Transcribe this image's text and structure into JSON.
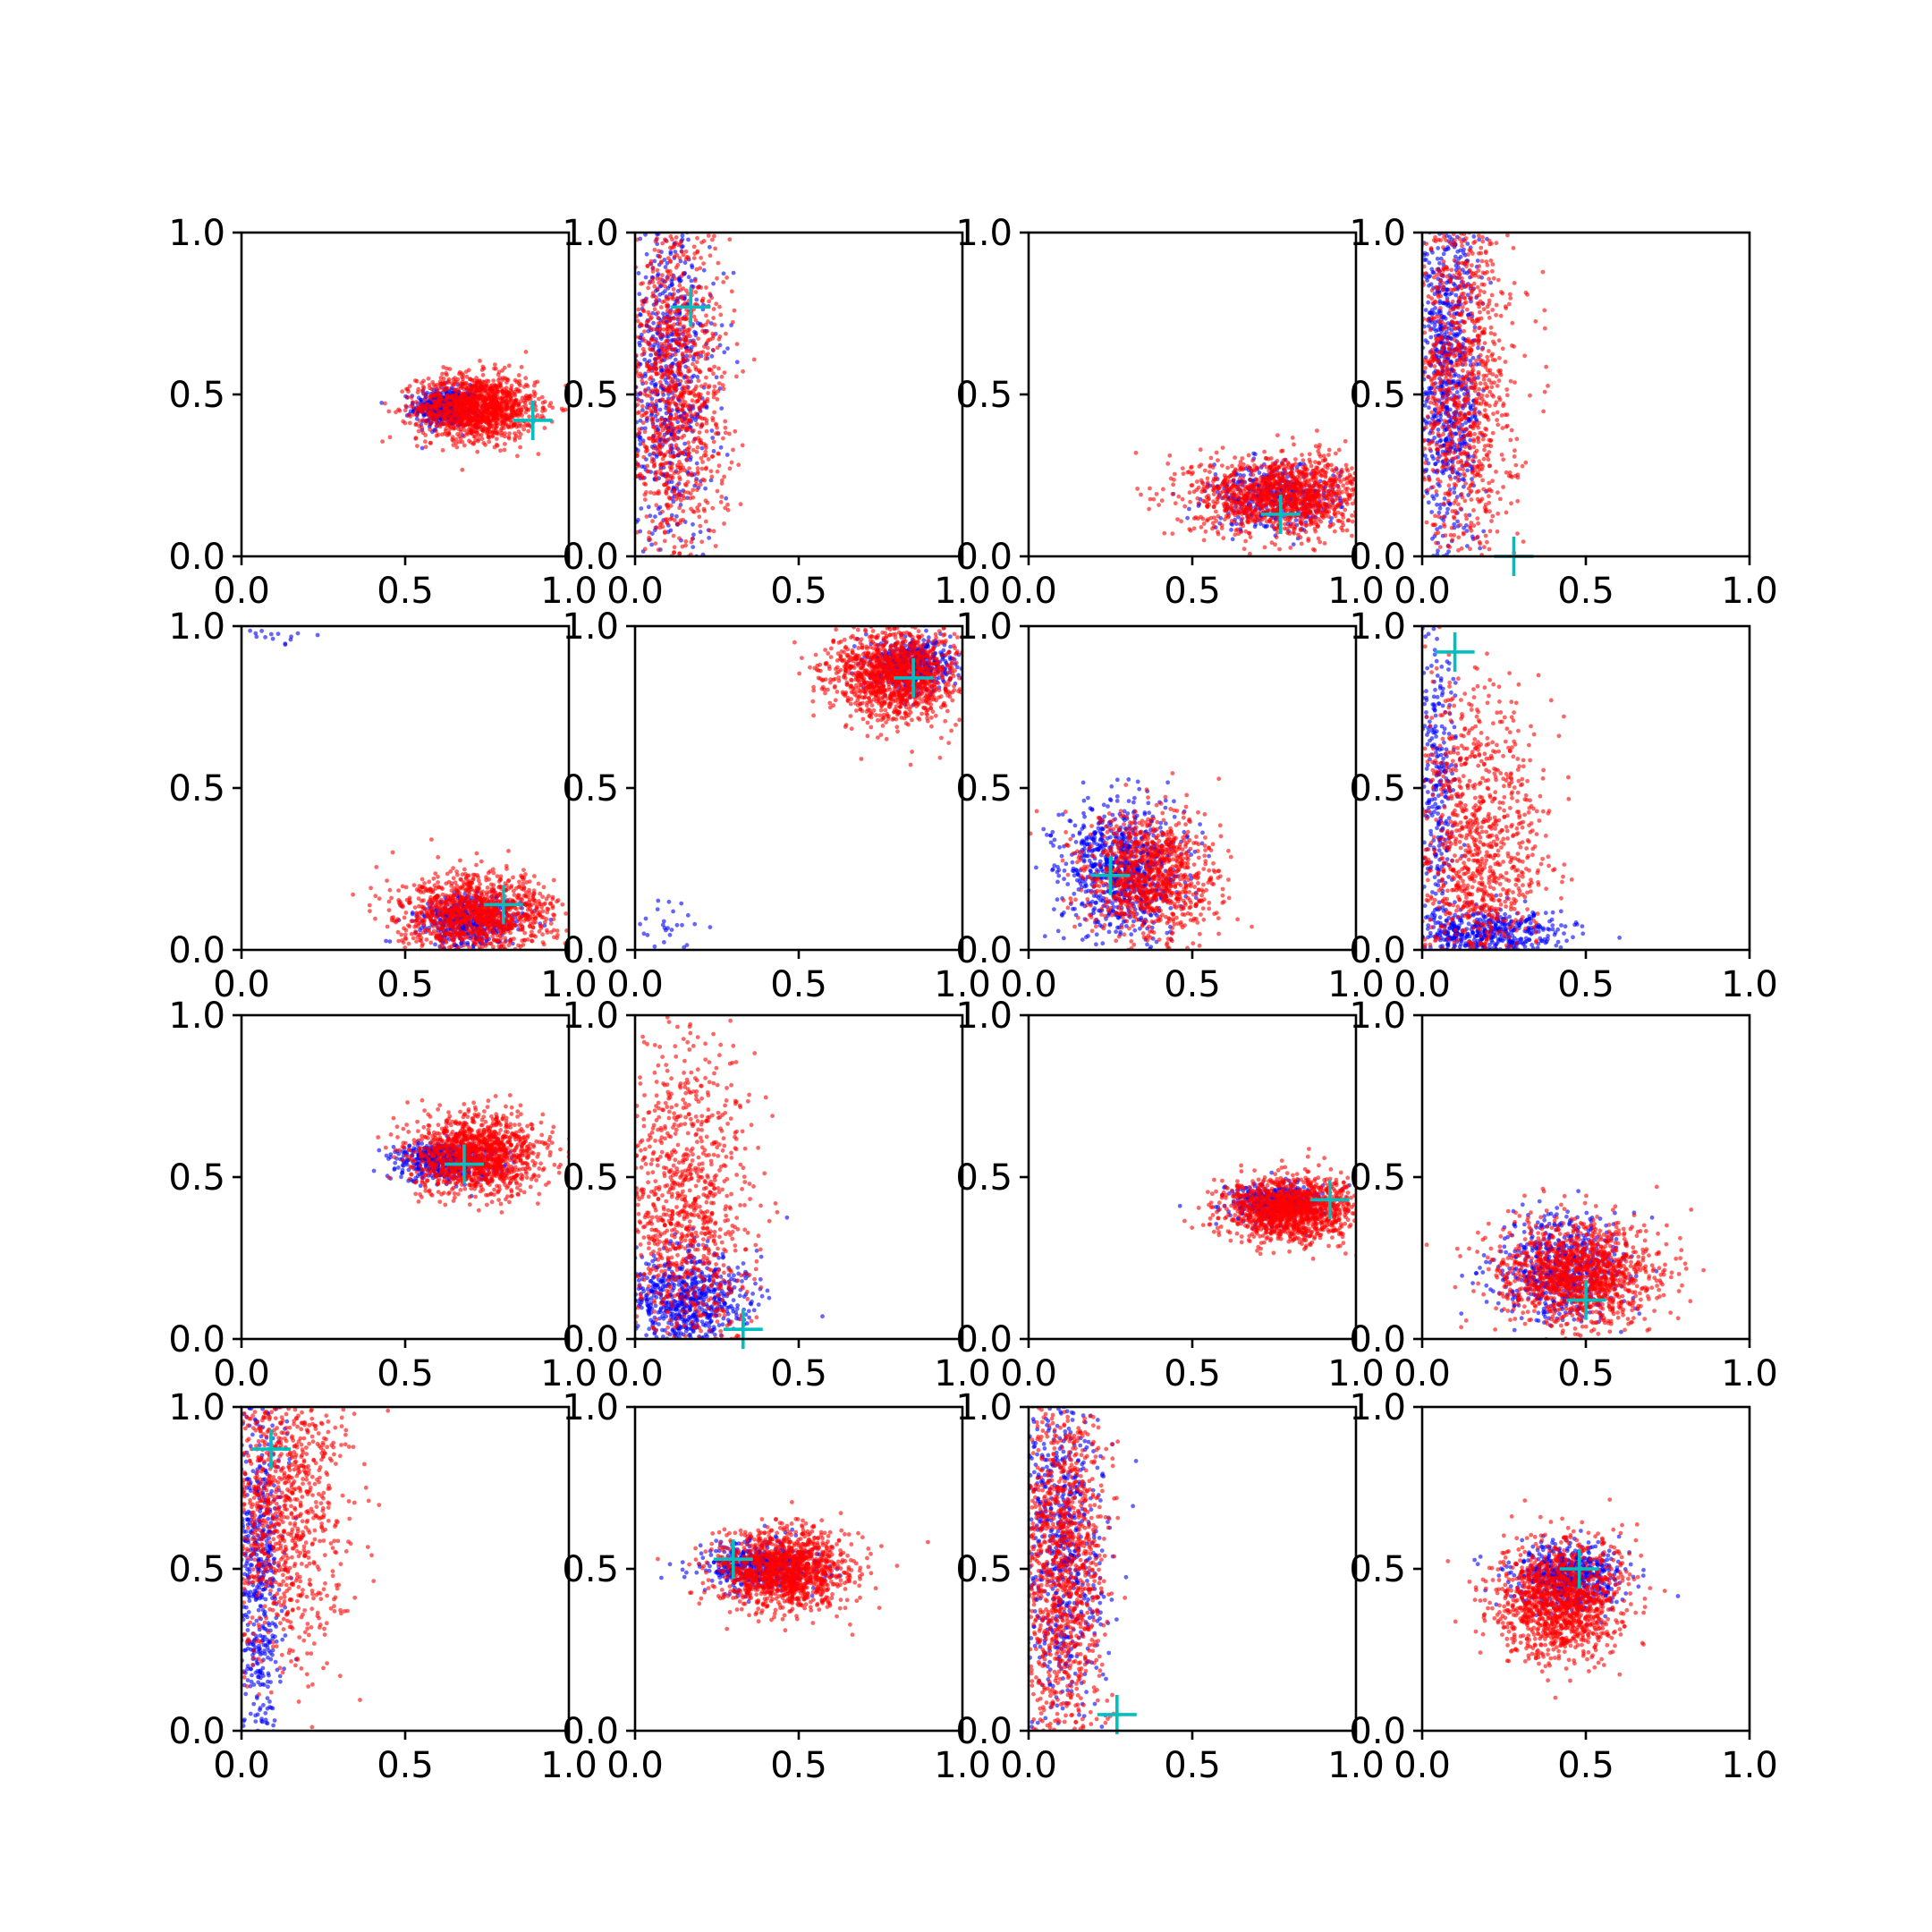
{
  "chart_data": {
    "type": "scatter",
    "layout": "4x4 grid of subplots",
    "xlim": [
      0,
      1
    ],
    "ylim": [
      0,
      1
    ],
    "xticks": [
      0.0,
      0.5,
      1.0
    ],
    "yticks": [
      0.0,
      0.5,
      1.0
    ],
    "tick_labels": [
      "0.0",
      "0.5",
      "1.0"
    ],
    "grid": false,
    "legend": "none",
    "colors": {
      "series_a": "#0000ff",
      "series_b": "#ff0000",
      "marker": "#00bfbf"
    },
    "subplots": [
      {
        "blue": [
          {
            "cx": 0.63,
            "cy": 0.46,
            "sx": 0.05,
            "sy": 0.03,
            "n": 500
          }
        ],
        "red": [
          {
            "cx": 0.72,
            "cy": 0.46,
            "sx": 0.09,
            "sy": 0.05,
            "n": 1300
          }
        ],
        "marker": [
          0.89,
          0.42
        ]
      },
      {
        "blue": [
          {
            "cx": 0.1,
            "cy": 0.55,
            "sx": 0.07,
            "sy": 0.28,
            "n": 700
          }
        ],
        "red": [
          {
            "cx": 0.12,
            "cy": 0.5,
            "sx": 0.08,
            "sy": 0.3,
            "n": 1200
          }
        ],
        "marker": [
          0.17,
          0.77
        ]
      },
      {
        "blue": [
          {
            "cx": 0.75,
            "cy": 0.18,
            "sx": 0.1,
            "sy": 0.05,
            "n": 400
          }
        ],
        "red": [
          {
            "cx": 0.78,
            "cy": 0.19,
            "sx": 0.14,
            "sy": 0.06,
            "n": 1300
          }
        ],
        "marker": [
          0.77,
          0.13
        ]
      },
      {
        "blue": [
          {
            "cx": 0.08,
            "cy": 0.55,
            "sx": 0.05,
            "sy": 0.28,
            "n": 800
          }
        ],
        "red": [
          {
            "cx": 0.12,
            "cy": 0.55,
            "sx": 0.08,
            "sy": 0.3,
            "n": 1100
          }
        ],
        "marker": [
          0.28,
          0.0
        ]
      },
      {
        "blue": [
          {
            "cx": 0.7,
            "cy": 0.09,
            "sx": 0.08,
            "sy": 0.04,
            "n": 500
          },
          {
            "cx": 0.1,
            "cy": 0.97,
            "sx": 0.06,
            "sy": 0.02,
            "n": 15
          }
        ],
        "red": [
          {
            "cx": 0.72,
            "cy": 0.11,
            "sx": 0.12,
            "sy": 0.06,
            "n": 1200
          }
        ],
        "marker": [
          0.8,
          0.14
        ]
      },
      {
        "blue": [
          {
            "cx": 0.85,
            "cy": 0.88,
            "sx": 0.06,
            "sy": 0.04,
            "n": 500
          },
          {
            "cx": 0.1,
            "cy": 0.07,
            "sx": 0.05,
            "sy": 0.05,
            "n": 25
          }
        ],
        "red": [
          {
            "cx": 0.8,
            "cy": 0.85,
            "sx": 0.1,
            "sy": 0.07,
            "n": 1300
          }
        ],
        "marker": [
          0.85,
          0.84
        ]
      },
      {
        "blue": [
          {
            "cx": 0.28,
            "cy": 0.25,
            "sx": 0.09,
            "sy": 0.1,
            "n": 800
          }
        ],
        "red": [
          {
            "cx": 0.37,
            "cy": 0.22,
            "sx": 0.1,
            "sy": 0.1,
            "n": 1000
          }
        ],
        "marker": [
          0.25,
          0.23
        ]
      },
      {
        "blue": [
          {
            "cx": 0.2,
            "cy": 0.05,
            "sx": 0.12,
            "sy": 0.04,
            "n": 500
          },
          {
            "cx": 0.05,
            "cy": 0.5,
            "sx": 0.03,
            "sy": 0.25,
            "n": 300
          }
        ],
        "red": [
          {
            "cx": 0.17,
            "cy": 0.3,
            "sx": 0.1,
            "sy": 0.25,
            "n": 1100
          }
        ],
        "marker": [
          0.1,
          0.92
        ]
      },
      {
        "blue": [
          {
            "cx": 0.62,
            "cy": 0.55,
            "sx": 0.08,
            "sy": 0.03,
            "n": 500
          }
        ],
        "red": [
          {
            "cx": 0.72,
            "cy": 0.57,
            "sx": 0.1,
            "sy": 0.06,
            "n": 1300
          }
        ],
        "marker": [
          0.68,
          0.54
        ]
      },
      {
        "blue": [
          {
            "cx": 0.15,
            "cy": 0.12,
            "sx": 0.1,
            "sy": 0.08,
            "n": 700
          }
        ],
        "red": [
          {
            "cx": 0.15,
            "cy": 0.35,
            "sx": 0.1,
            "sy": 0.28,
            "n": 1100
          }
        ],
        "marker": [
          0.33,
          0.03
        ]
      },
      {
        "blue": [
          {
            "cx": 0.75,
            "cy": 0.42,
            "sx": 0.07,
            "sy": 0.03,
            "n": 400
          }
        ],
        "red": [
          {
            "cx": 0.8,
            "cy": 0.4,
            "sx": 0.1,
            "sy": 0.05,
            "n": 1300
          }
        ],
        "marker": [
          0.92,
          0.43
        ]
      },
      {
        "blue": [
          {
            "cx": 0.42,
            "cy": 0.22,
            "sx": 0.1,
            "sy": 0.08,
            "n": 600
          }
        ],
        "red": [
          {
            "cx": 0.48,
            "cy": 0.2,
            "sx": 0.12,
            "sy": 0.08,
            "n": 1300
          }
        ],
        "marker": [
          0.5,
          0.12
        ]
      },
      {
        "blue": [
          {
            "cx": 0.05,
            "cy": 0.5,
            "sx": 0.04,
            "sy": 0.3,
            "n": 600
          }
        ],
        "red": [
          {
            "cx": 0.12,
            "cy": 0.7,
            "sx": 0.1,
            "sy": 0.25,
            "n": 1100
          }
        ],
        "marker": [
          0.09,
          0.87
        ]
      },
      {
        "blue": [
          {
            "cx": 0.38,
            "cy": 0.51,
            "sx": 0.08,
            "sy": 0.04,
            "n": 500
          }
        ],
        "red": [
          {
            "cx": 0.46,
            "cy": 0.49,
            "sx": 0.1,
            "sy": 0.06,
            "n": 1300
          }
        ],
        "marker": [
          0.3,
          0.53
        ]
      },
      {
        "blue": [
          {
            "cx": 0.1,
            "cy": 0.55,
            "sx": 0.07,
            "sy": 0.28,
            "n": 700
          }
        ],
        "red": [
          {
            "cx": 0.1,
            "cy": 0.5,
            "sx": 0.07,
            "sy": 0.3,
            "n": 1200
          }
        ],
        "marker": [
          0.27,
          0.05
        ]
      },
      {
        "blue": [
          {
            "cx": 0.45,
            "cy": 0.48,
            "sx": 0.08,
            "sy": 0.05,
            "n": 600
          }
        ],
        "red": [
          {
            "cx": 0.42,
            "cy": 0.4,
            "sx": 0.1,
            "sy": 0.09,
            "n": 1300
          }
        ],
        "marker": [
          0.48,
          0.5
        ]
      }
    ]
  }
}
